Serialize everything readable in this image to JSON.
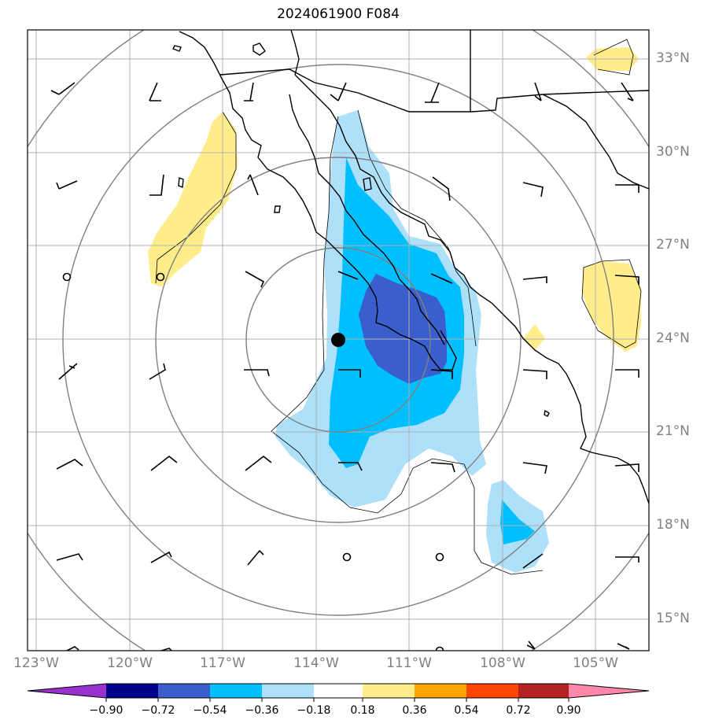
{
  "title": "2024061900 F084",
  "lat_labels": [
    "33°N",
    "30°N",
    "27°N",
    "24°N",
    "21°N",
    "18°N",
    "15°N"
  ],
  "lon_labels": [
    "123°W",
    "120°W",
    "117°W",
    "114°W",
    "111°W",
    "108°W",
    "105°W"
  ],
  "colorbar": {
    "labels": [
      "−0.90",
      "−0.72",
      "−0.54",
      "−0.36",
      "−0.18",
      "0.18",
      "0.36",
      "0.54",
      "0.72",
      "0.90"
    ],
    "colors": [
      "#9932cc",
      "#00008b",
      "#3a5fcd",
      "#00bfff",
      "#aee0fa",
      "#ffffff",
      "#ffec8b",
      "#ffa500",
      "#ff4500",
      "#b22222",
      "#ff88aa"
    ]
  },
  "colors": {
    "dark_blue": "#3a5fcd",
    "mid_blue": "#00bfff",
    "light_blue": "#aee0fa",
    "yellow": "#ffec8b",
    "grid": "#b0b0b0",
    "range_rings": "#808080"
  },
  "center_marker": {
    "lat": 24.0,
    "lon": "113.7°W"
  }
}
